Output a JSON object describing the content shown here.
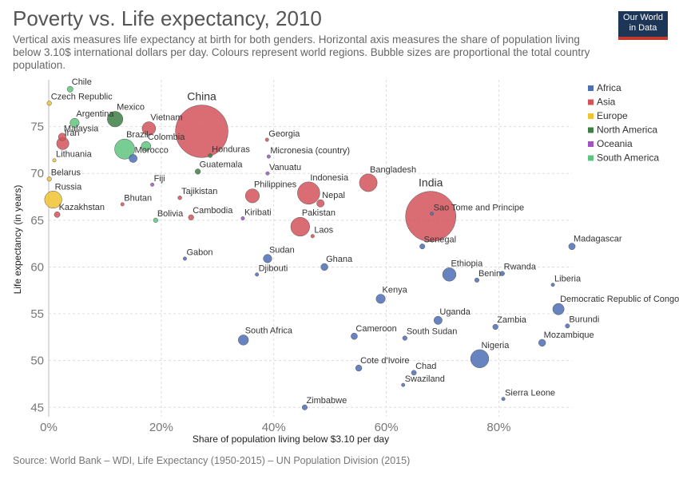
{
  "header": {
    "title": "Poverty vs. Life expectancy, 2010",
    "subtitle": "Vertical axis measures life expectancy at birth for both genders. Horizontal axis measures the share of population living below 3.10$ international dollars per day. Colours represent world regions. Bubble sizes are proportional the total country population.",
    "logo_line1": "Our World",
    "logo_line2": "in Data"
  },
  "footer": {
    "source": "Source: World Bank – WDI, Life Expectancy (1950-2015) – UN Population Division (2015)"
  },
  "chart_data": {
    "type": "scatter",
    "xlabel": "Share of population living below $3.10 per day",
    "ylabel": "Life expectancy (in years)",
    "xlim": [
      0,
      93
    ],
    "ylim": [
      44,
      80
    ],
    "x_ticks": [
      0,
      20,
      40,
      60,
      80
    ],
    "x_tick_labels": [
      "0%",
      "20%",
      "40%",
      "60%",
      "80%"
    ],
    "y_ticks": [
      45,
      50,
      55,
      60,
      65,
      70,
      75
    ],
    "y_tick_labels": [
      "45",
      "50",
      "55",
      "60",
      "65",
      "70",
      "75"
    ],
    "grid": true,
    "legend_position": "right",
    "regions": [
      {
        "name": "Africa",
        "color": "#4c6fb5"
      },
      {
        "name": "Asia",
        "color": "#d4545a"
      },
      {
        "name": "Europe",
        "color": "#f0c330"
      },
      {
        "name": "North America",
        "color": "#3d7f45"
      },
      {
        "name": "Oceania",
        "color": "#a354c4"
      },
      {
        "name": "South America",
        "color": "#5fc47f"
      }
    ],
    "points": [
      {
        "label": "China",
        "x": 27.2,
        "y": 74.5,
        "region": "Asia",
        "pop": 1340
      },
      {
        "label": "India",
        "x": 67.9,
        "y": 65.4,
        "region": "Asia",
        "pop": 1230
      },
      {
        "label": "Chile",
        "x": 3.8,
        "y": 79.0,
        "region": "South America",
        "pop": 17
      },
      {
        "label": "Czech Republic",
        "x": 0.1,
        "y": 77.5,
        "region": "Europe",
        "pop": 10
      },
      {
        "label": "Mexico",
        "x": 11.8,
        "y": 75.8,
        "region": "North America",
        "pop": 117
      },
      {
        "label": "Argentina",
        "x": 4.6,
        "y": 75.4,
        "region": "South America",
        "pop": 41
      },
      {
        "label": "Vietnam",
        "x": 17.8,
        "y": 74.8,
        "region": "Asia",
        "pop": 88
      },
      {
        "label": "Malaysia",
        "x": 2.4,
        "y": 73.9,
        "region": "Asia",
        "pop": 28
      },
      {
        "label": "Iran",
        "x": 2.5,
        "y": 73.2,
        "region": "Asia",
        "pop": 74
      },
      {
        "label": "Brazil",
        "x": 13.5,
        "y": 72.6,
        "region": "South America",
        "pop": 195
      },
      {
        "label": "Colombia",
        "x": 17.3,
        "y": 72.9,
        "region": "South America",
        "pop": 45
      },
      {
        "label": "Georgia",
        "x": 38.8,
        "y": 73.6,
        "region": "Asia",
        "pop": 4.5
      },
      {
        "label": "Lithuania",
        "x": 1.0,
        "y": 71.4,
        "region": "Europe",
        "pop": 3.1
      },
      {
        "label": "Morocco",
        "x": 15.0,
        "y": 71.6,
        "region": "Africa",
        "pop": 32
      },
      {
        "label": "Honduras",
        "x": 28.7,
        "y": 71.9,
        "region": "North America",
        "pop": 8
      },
      {
        "label": "Micronesia (country)",
        "x": 39.1,
        "y": 71.8,
        "region": "Oceania",
        "pop": 0.1
      },
      {
        "label": "Guatemala",
        "x": 26.5,
        "y": 70.2,
        "region": "North America",
        "pop": 14
      },
      {
        "label": "Vanuatu",
        "x": 38.9,
        "y": 70.0,
        "region": "Oceania",
        "pop": 0.24
      },
      {
        "label": "Bangladesh",
        "x": 56.8,
        "y": 69.0,
        "region": "Asia",
        "pop": 152
      },
      {
        "label": "Belarus",
        "x": 0.1,
        "y": 69.4,
        "region": "Europe",
        "pop": 9.5
      },
      {
        "label": "Fiji",
        "x": 18.4,
        "y": 68.8,
        "region": "Oceania",
        "pop": 0.86
      },
      {
        "label": "Indonesia",
        "x": 46.2,
        "y": 67.9,
        "region": "Asia",
        "pop": 242
      },
      {
        "label": "Philippines",
        "x": 36.2,
        "y": 67.6,
        "region": "Asia",
        "pop": 94
      },
      {
        "label": "Nepal",
        "x": 48.3,
        "y": 66.8,
        "region": "Asia",
        "pop": 27
      },
      {
        "label": "Russia",
        "x": 0.8,
        "y": 67.2,
        "region": "Europe",
        "pop": 143
      },
      {
        "label": "Tajikistan",
        "x": 23.3,
        "y": 67.4,
        "region": "Asia",
        "pop": 7.6
      },
      {
        "label": "Bhutan",
        "x": 13.1,
        "y": 66.7,
        "region": "Asia",
        "pop": 0.7
      },
      {
        "label": "Kazakhstan",
        "x": 1.5,
        "y": 65.6,
        "region": "Asia",
        "pop": 16
      },
      {
        "label": "Bolivia",
        "x": 19.0,
        "y": 65.0,
        "region": "South America",
        "pop": 10
      },
      {
        "label": "Cambodia",
        "x": 25.3,
        "y": 65.3,
        "region": "Asia",
        "pop": 14
      },
      {
        "label": "Kiribati",
        "x": 34.5,
        "y": 65.2,
        "region": "Oceania",
        "pop": 0.1
      },
      {
        "label": "Sao Tome and Principe",
        "x": 68.1,
        "y": 65.7,
        "region": "Africa",
        "pop": 0.18
      },
      {
        "label": "Pakistan",
        "x": 44.7,
        "y": 64.3,
        "region": "Asia",
        "pop": 173
      },
      {
        "label": "Laos",
        "x": 46.9,
        "y": 63.3,
        "region": "Asia",
        "pop": 6.4
      },
      {
        "label": "Senegal",
        "x": 66.4,
        "y": 62.2,
        "region": "Africa",
        "pop": 12.9
      },
      {
        "label": "Madagascar",
        "x": 93.0,
        "y": 62.2,
        "region": "Africa",
        "pop": 21
      },
      {
        "label": "Gabon",
        "x": 24.2,
        "y": 60.9,
        "region": "Africa",
        "pop": 1.6
      },
      {
        "label": "Sudan",
        "x": 38.9,
        "y": 60.9,
        "region": "Africa",
        "pop": 35
      },
      {
        "label": "Ghana",
        "x": 49.0,
        "y": 60.0,
        "region": "Africa",
        "pop": 24
      },
      {
        "label": "Djibouti",
        "x": 37.0,
        "y": 59.2,
        "region": "Africa",
        "pop": 0.85
      },
      {
        "label": "Ethiopia",
        "x": 71.2,
        "y": 59.2,
        "region": "Africa",
        "pop": 87
      },
      {
        "label": "Rwanda",
        "x": 80.6,
        "y": 59.3,
        "region": "Africa",
        "pop": 10.6
      },
      {
        "label": "Benin",
        "x": 76.1,
        "y": 58.6,
        "region": "Africa",
        "pop": 9.5
      },
      {
        "label": "Liberia",
        "x": 89.6,
        "y": 58.1,
        "region": "Africa",
        "pop": 3.9
      },
      {
        "label": "Kenya",
        "x": 59.0,
        "y": 56.6,
        "region": "Africa",
        "pop": 41
      },
      {
        "label": "Democratic Republic of Congo",
        "x": 90.6,
        "y": 55.5,
        "region": "Africa",
        "pop": 63
      },
      {
        "label": "Uganda",
        "x": 69.2,
        "y": 54.3,
        "region": "Africa",
        "pop": 33
      },
      {
        "label": "Zambia",
        "x": 79.4,
        "y": 53.6,
        "region": "Africa",
        "pop": 13.9
      },
      {
        "label": "Burundi",
        "x": 92.2,
        "y": 53.7,
        "region": "Africa",
        "pop": 9.2
      },
      {
        "label": "South Africa",
        "x": 34.6,
        "y": 52.2,
        "region": "Africa",
        "pop": 51
      },
      {
        "label": "Cameroon",
        "x": 54.3,
        "y": 52.6,
        "region": "Africa",
        "pop": 20
      },
      {
        "label": "South Sudan",
        "x": 63.3,
        "y": 52.4,
        "region": "Africa",
        "pop": 10
      },
      {
        "label": "Mozambique",
        "x": 87.7,
        "y": 51.9,
        "region": "Africa",
        "pop": 24
      },
      {
        "label": "Nigeria",
        "x": 76.6,
        "y": 50.2,
        "region": "Africa",
        "pop": 160
      },
      {
        "label": "Cote d'Ivoire",
        "x": 55.1,
        "y": 49.2,
        "region": "Africa",
        "pop": 19
      },
      {
        "label": "Chad",
        "x": 64.9,
        "y": 48.7,
        "region": "Africa",
        "pop": 11.9
      },
      {
        "label": "Swaziland",
        "x": 63.0,
        "y": 47.4,
        "region": "Africa",
        "pop": 1.2
      },
      {
        "label": "Sierra Leone",
        "x": 80.8,
        "y": 45.9,
        "region": "Africa",
        "pop": 5.8
      },
      {
        "label": "Zimbabwe",
        "x": 45.5,
        "y": 45.0,
        "region": "Africa",
        "pop": 13
      }
    ]
  }
}
